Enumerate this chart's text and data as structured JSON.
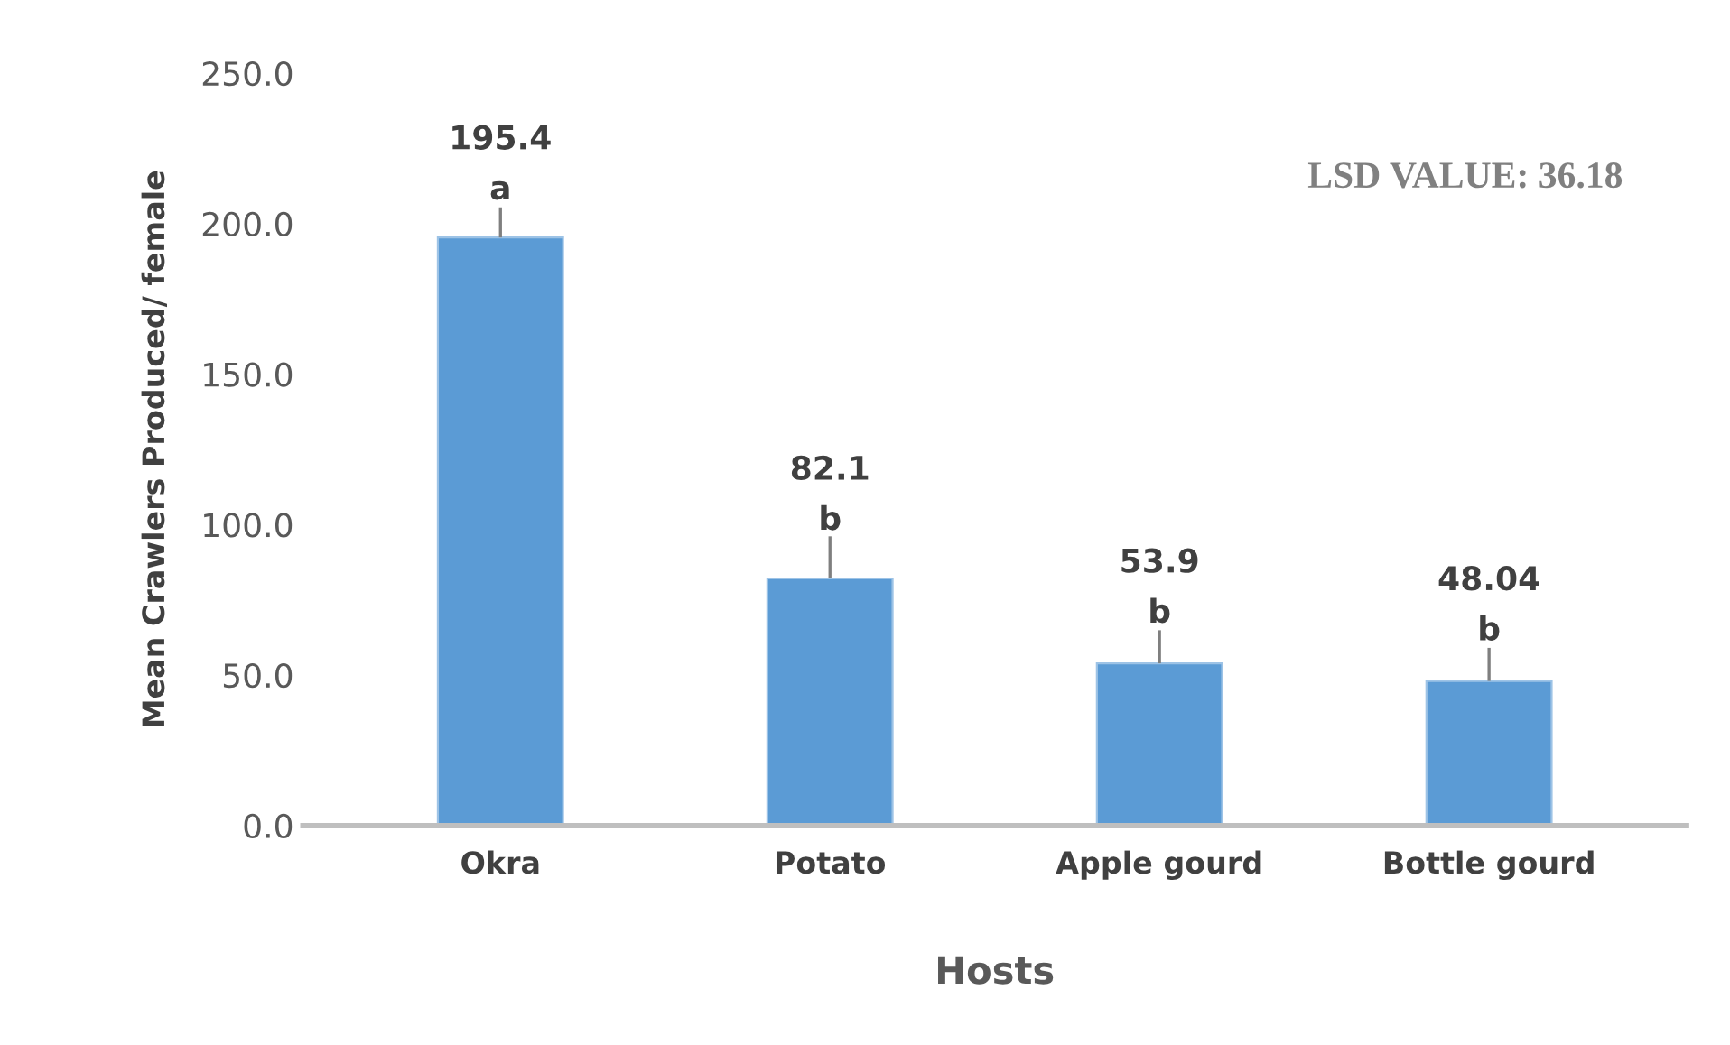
{
  "chart_data": {
    "type": "bar",
    "xlabel": "Hosts",
    "ylabel": "Mean Crawlers Produced/ female",
    "categories": [
      "Okra",
      "Potato",
      "Apple gourd",
      "Bottle gourd"
    ],
    "values": [
      195.4,
      82.1,
      53.9,
      48.04
    ],
    "errors": [
      [
        195.4,
        205.4
      ],
      [
        82.1,
        96.1
      ],
      [
        53.9,
        64.9
      ],
      [
        48.04,
        59.04
      ]
    ],
    "color": "#5b9bd5",
    "data_labels": true,
    "ylim": [
      0,
      250
    ],
    "yticks": [
      {
        "value": 0,
        "label": "0.0"
      },
      {
        "value": 50,
        "label": "50.0"
      },
      {
        "value": 100,
        "label": "100.0"
      },
      {
        "value": 150,
        "label": "150.0"
      },
      {
        "value": 200,
        "label": "200.0"
      },
      {
        "value": 250,
        "label": "250.0"
      }
    ],
    "grid": false,
    "annotations": [
      {
        "text": "a",
        "x": "Okra",
        "y": 195.4
      },
      {
        "text": "b",
        "x": "Potato",
        "y": 82.1
      },
      {
        "text": "b",
        "x": "Apple gourd",
        "y": 53.9
      },
      {
        "text": "b",
        "x": "Bottle gourd",
        "y": 48.04
      },
      "LSD VALUE: 36.18"
    ]
  }
}
